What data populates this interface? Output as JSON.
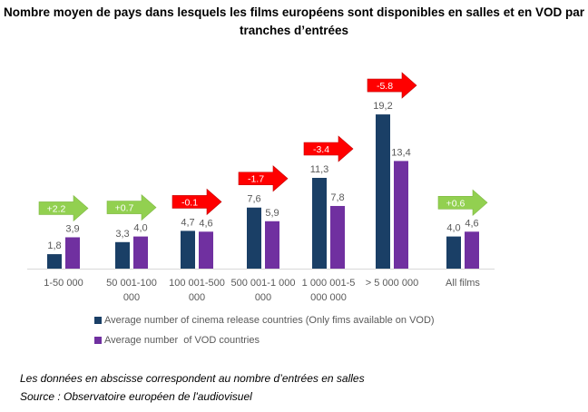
{
  "chart_data": {
    "type": "bar",
    "title": "Nombre moyen de pays dans lesquels les films européens sont disponibles en salles et en VOD par tranches d’entrées",
    "title_lines": [
      "Nombre moyen de pays dans lesquels les films européens sont disponibles en salles et en VOD par",
      "tranches d’entrées"
    ],
    "categories": [
      [
        "1-50 000"
      ],
      [
        "50 001-100",
        "000"
      ],
      [
        "100 001-500",
        "000"
      ],
      [
        "500 001-1 000",
        "000"
      ],
      [
        "1 000 001-5",
        "000 000"
      ],
      [
        "> 5 000 000"
      ],
      [
        "All films"
      ]
    ],
    "series": [
      {
        "name": "Average number of cinema release countries (Only fims available on VOD)",
        "color": "#1a3f66",
        "values": [
          1.8,
          3.3,
          4.7,
          7.6,
          11.3,
          19.2,
          4.0
        ],
        "labels": [
          "1,8",
          "3,3",
          "4,7",
          "7,6",
          "11,3",
          "19,2",
          "4,0"
        ]
      },
      {
        "name": "Average number  of VOD countries",
        "color": "#7030a0",
        "values": [
          3.9,
          4.0,
          4.6,
          5.9,
          7.8,
          13.4,
          4.6
        ],
        "labels": [
          "3,9",
          "4,0",
          "4,6",
          "5,9",
          "7,8",
          "13,4",
          "4,6"
        ]
      }
    ],
    "annotations": [
      {
        "text": "+2.2",
        "color": "#92d050"
      },
      {
        "text": "+0.7",
        "color": "#92d050"
      },
      {
        "text": "-0.1",
        "color": "#ff0000"
      },
      {
        "text": "-1.7",
        "color": "#ff0000"
      },
      {
        "text": "-3.4",
        "color": "#ff0000"
      },
      {
        "text": "-5.8",
        "color": "#ff0000"
      },
      {
        "text": "+0.6",
        "color": "#92d050"
      }
    ],
    "xlabel": "",
    "ylabel": "",
    "ylim": [
      0,
      20
    ],
    "grid": false,
    "legend_position": "bottom-left"
  },
  "notes": {
    "axis_note": "Les données en abscisse correspondent au nombre d’entrées en salles",
    "source": "Source : Observatoire européen de l'audiovisuel"
  }
}
